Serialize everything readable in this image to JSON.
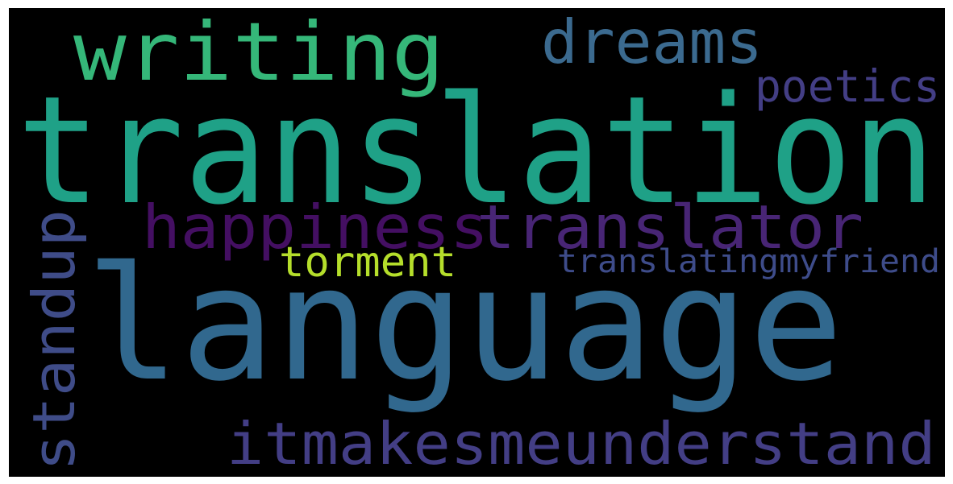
{
  "word_cloud": {
    "background": "#000000",
    "words": [
      {
        "text": "translation",
        "color": "#1fa187"
      },
      {
        "text": "language",
        "color": "#31688e"
      },
      {
        "text": "writing",
        "color": "#35b779"
      },
      {
        "text": "dreams",
        "color": "#3b6a8f"
      },
      {
        "text": "poetics",
        "color": "#433e85"
      },
      {
        "text": "happiness",
        "color": "#440f62"
      },
      {
        "text": "translator",
        "color": "#482575"
      },
      {
        "text": "torment",
        "color": "#b5de2b"
      },
      {
        "text": "translatingmyfriend",
        "color": "#3e4c8a"
      },
      {
        "text": "standup",
        "color": "#3f4c88"
      },
      {
        "text": "itmakesmeunderstand",
        "color": "#433e85"
      }
    ]
  }
}
